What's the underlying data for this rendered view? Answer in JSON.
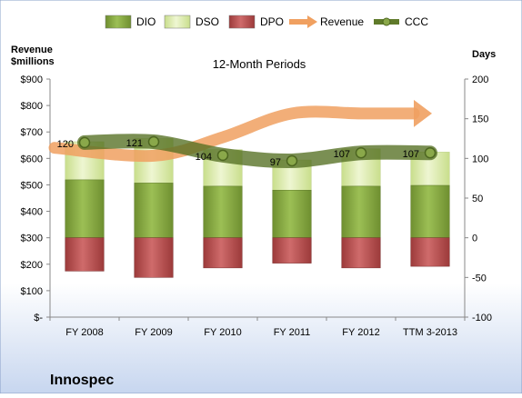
{
  "chart_data": {
    "type": "bar",
    "title": "12-Month Periods",
    "company": "Innospec",
    "y_left_label_line1": "Revenue",
    "y_left_label_line2": "$millions",
    "y_right_label": "Days",
    "categories": [
      "FY 2008",
      "FY 2009",
      "FY 2010",
      "FY 2011",
      "FY 2012",
      "TTM 3-2013"
    ],
    "y_left_ticks": [
      "$-",
      "$100",
      "$200",
      "$300",
      "$400",
      "$500",
      "$600",
      "$700",
      "$800",
      "$900"
    ],
    "y_left_range": [
      0,
      900
    ],
    "y_right_ticks": [
      "-100",
      "-50",
      "0",
      "50",
      "100",
      "150",
      "200"
    ],
    "y_right_range": [
      -100,
      200
    ],
    "grid": false,
    "legend_position": "top",
    "legend": [
      {
        "key": "dio",
        "label": "DIO",
        "color": "#7f9f3a"
      },
      {
        "key": "dso",
        "label": "DSO",
        "color": "#d4e6a5"
      },
      {
        "key": "dpo",
        "label": "DPO",
        "color": "#b24a4a"
      },
      {
        "key": "revenue",
        "label": "Revenue",
        "color": "#f0a060"
      },
      {
        "key": "ccc",
        "label": "CCC",
        "color": "#5f7a2a"
      }
    ],
    "series": [
      {
        "name": "DIO",
        "axis": "days",
        "values": [
          73,
          69,
          65,
          60,
          65,
          66
        ]
      },
      {
        "name": "DSO",
        "axis": "days",
        "values": [
          48,
          56,
          46,
          38,
          47,
          42
        ]
      },
      {
        "name": "DPO",
        "axis": "days",
        "values": [
          -42,
          -50,
          -38,
          -32,
          -38,
          -36
        ]
      },
      {
        "name": "Revenue",
        "axis": "revenue",
        "values": [
          640,
          610,
          680,
          770,
          770,
          770
        ]
      },
      {
        "name": "CCC",
        "axis": "days",
        "values": [
          120,
          121,
          104,
          97,
          107,
          107
        ]
      }
    ],
    "ccc_labels": [
      "120",
      "121",
      "104",
      "97",
      "107",
      "107"
    ]
  }
}
